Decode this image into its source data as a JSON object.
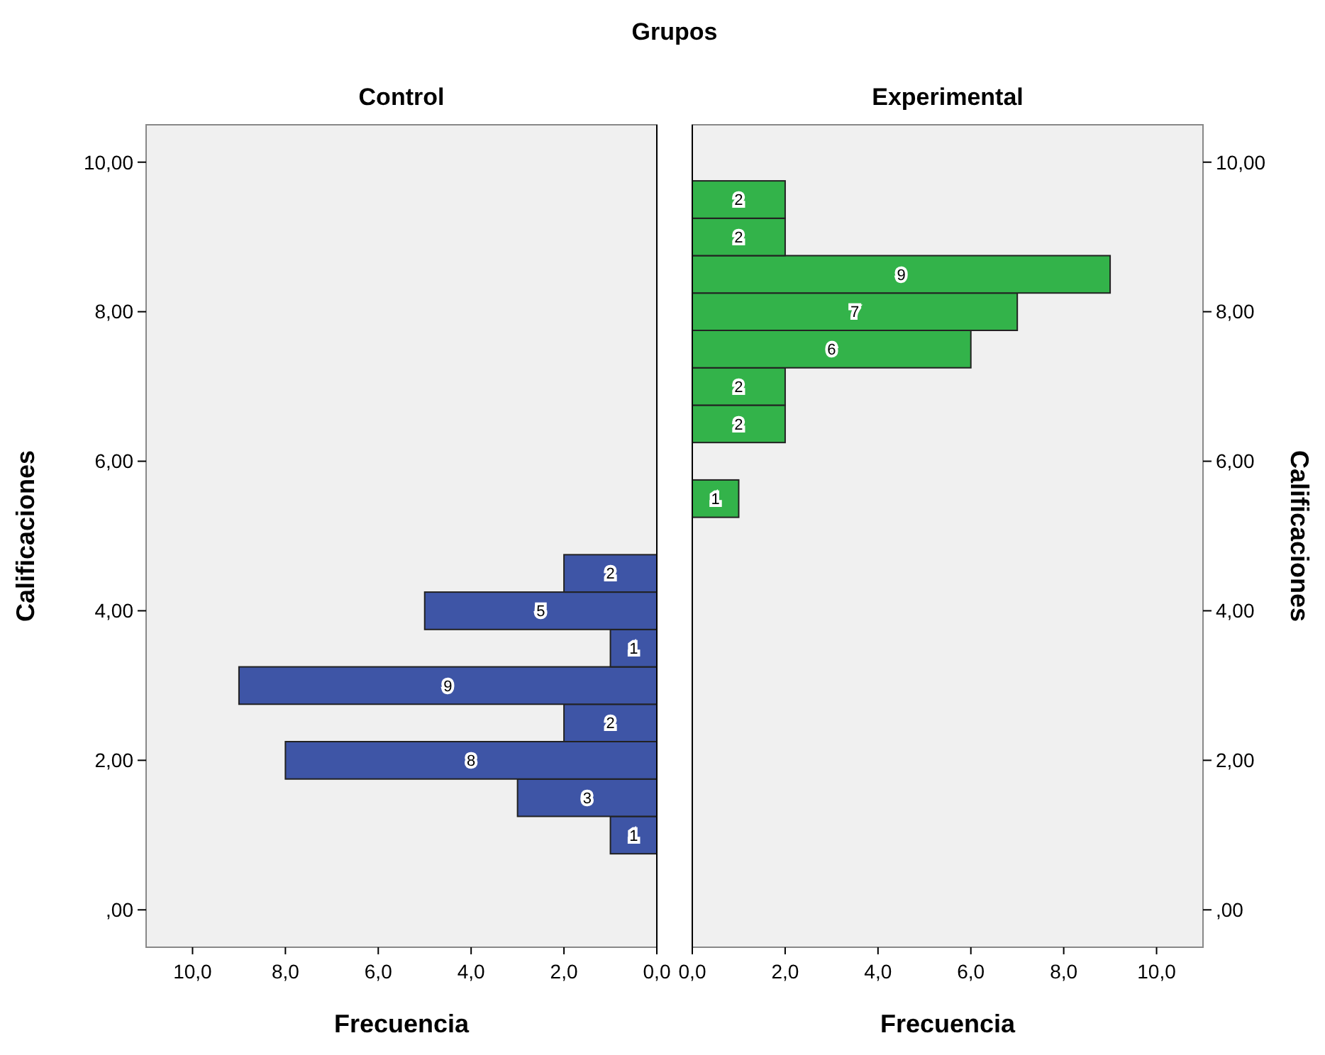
{
  "chart_data": [
    {
      "type": "histogram",
      "orientation": "horizontal",
      "title": "Control",
      "annotations": [
        "Grupos"
      ],
      "xlabel": "Frecuencia",
      "ylabel": "Calificaciones",
      "color": "#3e55a6",
      "bins": [
        0.75,
        1.25,
        1.75,
        2.25,
        2.75,
        3.25,
        3.75,
        4.25,
        4.75
      ],
      "values": [
        1,
        3,
        8,
        2,
        9,
        1,
        5,
        2
      ],
      "data_labels": true,
      "xlim": [
        11,
        0
      ],
      "xticks": [
        {
          "value": 10,
          "label": "10,0"
        },
        {
          "value": 8,
          "label": "8,0"
        },
        {
          "value": 6,
          "label": "6,0"
        },
        {
          "value": 4,
          "label": "4,0"
        },
        {
          "value": 2,
          "label": "2,0"
        },
        {
          "value": 0,
          "label": "0,0"
        }
      ],
      "ylim": [
        -0.5,
        10.5
      ],
      "yticks": [
        {
          "value": 0,
          "label": ",00"
        },
        {
          "value": 2,
          "label": "2,00"
        },
        {
          "value": 4,
          "label": "4,00"
        },
        {
          "value": 6,
          "label": "6,00"
        },
        {
          "value": 8,
          "label": "8,00"
        },
        {
          "value": 10,
          "label": "10,00"
        }
      ],
      "grid": false
    },
    {
      "type": "histogram",
      "orientation": "horizontal",
      "title": "Experimental",
      "xlabel": "Frecuencia",
      "ylabel": "Calificaciones",
      "color": "#33b34a",
      "bins": [
        5.25,
        5.75,
        6.25,
        6.75,
        7.25,
        7.75,
        8.25,
        8.75,
        9.25,
        9.75
      ],
      "values": [
        1,
        0,
        2,
        2,
        6,
        7,
        9,
        2,
        2
      ],
      "value_labels": [
        "1",
        null,
        "2",
        "2",
        "6",
        "7",
        "9",
        "2",
        "2"
      ],
      "xlim": [
        0,
        11
      ],
      "xticks": [
        {
          "value": 0,
          "label": "0,0"
        },
        {
          "value": 2,
          "label": "2,0"
        },
        {
          "value": 4,
          "label": "4,0"
        },
        {
          "value": 6,
          "label": "6,0"
        },
        {
          "value": 8,
          "label": "8,0"
        },
        {
          "value": 10,
          "label": "10,0"
        }
      ],
      "ylim": [
        -0.5,
        10.5
      ],
      "yticks": [
        {
          "value": 0,
          "label": ",00"
        },
        {
          "value": 2,
          "label": "2,00"
        },
        {
          "value": 4,
          "label": "4,00"
        },
        {
          "value": 6,
          "label": "6,00"
        },
        {
          "value": 8,
          "label": "8,00"
        },
        {
          "value": 10,
          "label": "10,00"
        }
      ],
      "grid": false
    }
  ]
}
